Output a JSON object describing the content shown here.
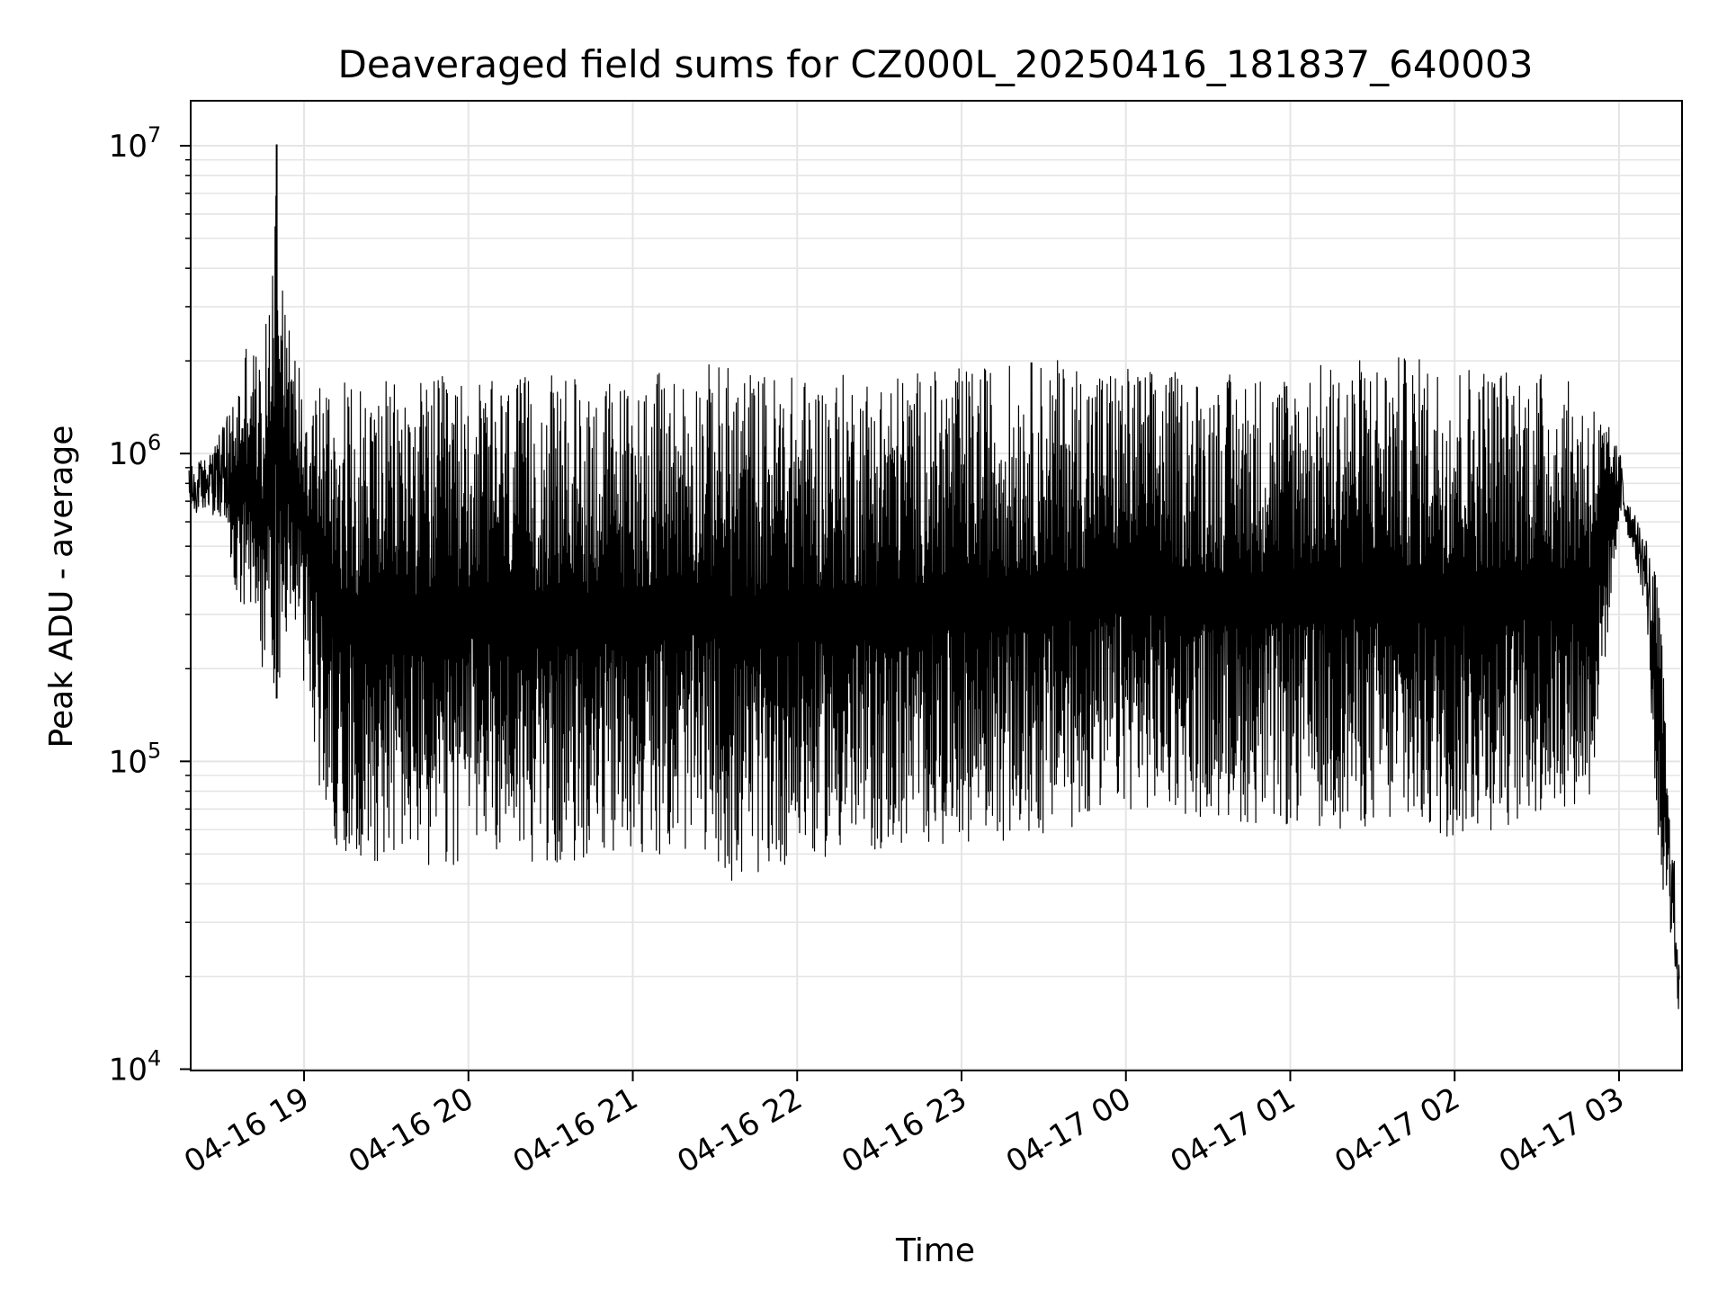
{
  "chart_data": {
    "type": "line",
    "title": "Deaveraged field sums for CZ000L_20250416_181837_640003",
    "xlabel": "Time",
    "ylabel": "Peak ADU - average",
    "yscale": "log",
    "ylim": [
      9900,
      14000000
    ],
    "xlim": [
      "2025-04-16 18:18:37",
      "2025-04-17 03:23:00"
    ],
    "grid": true,
    "line_color": "#000000",
    "grid_color": "#e5e5e5",
    "x_ticks": [
      {
        "value": "2025-04-16 19:00",
        "label": "04-16 19"
      },
      {
        "value": "2025-04-16 20:00",
        "label": "04-16 20"
      },
      {
        "value": "2025-04-16 21:00",
        "label": "04-16 21"
      },
      {
        "value": "2025-04-16 22:00",
        "label": "04-16 22"
      },
      {
        "value": "2025-04-16 23:00",
        "label": "04-16 23"
      },
      {
        "value": "2025-04-17 00:00",
        "label": "04-17 00"
      },
      {
        "value": "2025-04-17 01:00",
        "label": "04-17 01"
      },
      {
        "value": "2025-04-17 02:00",
        "label": "04-17 02"
      },
      {
        "value": "2025-04-17 03:00",
        "label": "04-17 03"
      }
    ],
    "y_ticks": [
      {
        "value": 10000,
        "base": "10",
        "exp": "4"
      },
      {
        "value": 100000,
        "base": "10",
        "exp": "5"
      },
      {
        "value": 1000000,
        "base": "10",
        "exp": "6"
      },
      {
        "value": 10000000,
        "base": "10",
        "exp": "7"
      }
    ],
    "series": [
      {
        "x": [
          "2025-04-16 18:18",
          "2025-04-16 18:25",
          "2025-04-16 18:30",
          "2025-04-16 18:35",
          "2025-04-16 18:40",
          "2025-04-16 18:45",
          "2025-04-16 18:50",
          "2025-04-16 18:55",
          "2025-04-16 19:00",
          "2025-04-16 19:05",
          "2025-04-16 19:10",
          "2025-04-16 19:20",
          "2025-04-16 19:40",
          "2025-04-16 19:52",
          "2025-04-16 20:00",
          "2025-04-16 20:30",
          "2025-04-16 21:00",
          "2025-04-16 21:30",
          "2025-04-16 21:36",
          "2025-04-16 22:00",
          "2025-04-16 22:30",
          "2025-04-16 23:00",
          "2025-04-16 23:30",
          "2025-04-17 00:00",
          "2025-04-17 00:30",
          "2025-04-17 01:00",
          "2025-04-17 01:30",
          "2025-04-17 02:00",
          "2025-04-17 02:30",
          "2025-04-17 02:50",
          "2025-04-17 03:00",
          "2025-04-17 03:05",
          "2025-04-17 03:10",
          "2025-04-17 03:15",
          "2025-04-17 03:18",
          "2025-04-17 03:21",
          "2025-04-17 03:22"
        ],
        "min": [
          620000,
          650000,
          600000,
          320000,
          250000,
          200000,
          160000,
          300000,
          180000,
          85000,
          55000,
          47000,
          48000,
          38000,
          55000,
          45000,
          50000,
          50000,
          38000,
          48000,
          50000,
          55000,
          55000,
          70000,
          65000,
          60000,
          60000,
          55000,
          65000,
          75000,
          600000,
          500000,
          300000,
          40000,
          32000,
          18000,
          14000
        ],
        "max": [
          900000,
          1000000,
          1200000,
          1600000,
          2700000,
          1800000,
          10100000,
          2300000,
          1950000,
          1900000,
          1800000,
          1700000,
          1750000,
          1800000,
          1700000,
          1800000,
          1750000,
          2000000,
          1950000,
          1800000,
          1850000,
          1900000,
          2050000,
          1950000,
          1800000,
          1900000,
          2100000,
          2050000,
          1900000,
          1600000,
          1050000,
          650000,
          550000,
          350000,
          80000,
          40000,
          20000
        ]
      }
    ]
  }
}
